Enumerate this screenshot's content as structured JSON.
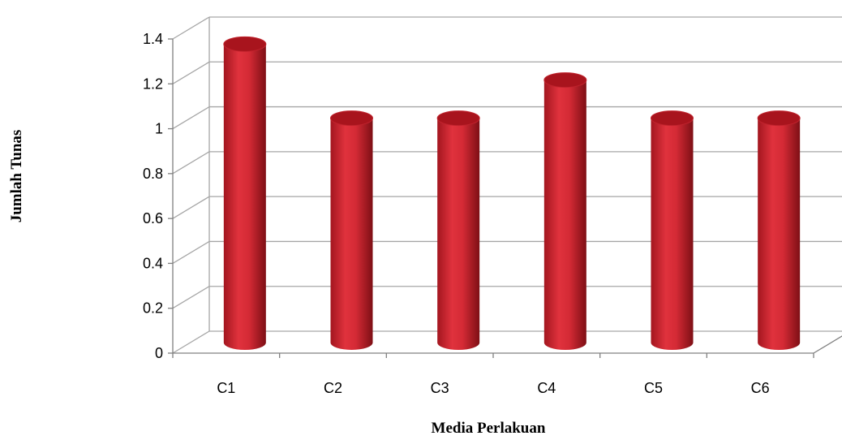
{
  "chart_data": {
    "type": "bar",
    "categories": [
      "C1",
      "C2",
      "C3",
      "C4",
      "C5",
      "C6"
    ],
    "values": [
      1.33,
      1.0,
      1.0,
      1.17,
      1.0,
      1.0
    ],
    "xlabel": "Media Perlakuan",
    "ylabel": "Jumlah Tunas",
    "ylim": [
      0,
      1.4
    ],
    "yticks": [
      "0",
      "0.2",
      "0.4",
      "0.6",
      "0.8",
      "1",
      "1.2",
      "1.4"
    ],
    "grid": true,
    "legend": "none",
    "colors": {
      "bar": "#d42a35",
      "bar_dark": "#8e1219",
      "bar_top": "#a8141d",
      "grid": "#a6a6a6",
      "axis": "#808080"
    }
  }
}
